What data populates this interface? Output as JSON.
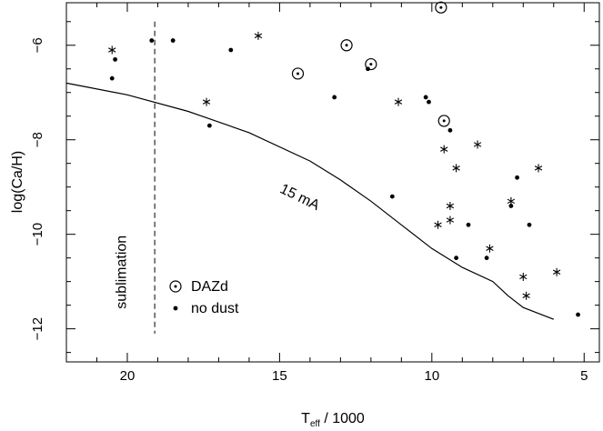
{
  "chart_data": {
    "type": "scatter",
    "xlabel": "T_eff / 1000",
    "ylabel": "log(Ca/H)",
    "xlim": [
      22,
      4.5
    ],
    "ylim": [
      -12.7,
      -5.1
    ],
    "x_reversed": true,
    "grid": false,
    "legend_placement": "lower-left",
    "x_ticks": [
      20,
      15,
      10,
      5
    ],
    "y_ticks": [
      -6,
      -8,
      -10,
      -12
    ],
    "series": [
      {
        "name": "DAZd",
        "marker": "circle-dot",
        "points": [
          [
            9.7,
            -5.2
          ],
          [
            12.8,
            -6.0
          ],
          [
            12.0,
            -6.4
          ],
          [
            14.4,
            -6.6
          ],
          [
            9.6,
            -7.6
          ]
        ]
      },
      {
        "name": "no dust",
        "marker": "dot",
        "points": [
          [
            20.5,
            -6.7
          ],
          [
            20.4,
            -6.3
          ],
          [
            19.2,
            -5.9
          ],
          [
            18.5,
            -5.9
          ],
          [
            16.6,
            -6.1
          ],
          [
            17.3,
            -7.7
          ],
          [
            13.2,
            -7.1
          ],
          [
            12.1,
            -6.5
          ],
          [
            10.2,
            -7.1
          ],
          [
            10.1,
            -7.2
          ],
          [
            9.4,
            -7.8
          ],
          [
            11.3,
            -9.2
          ],
          [
            9.2,
            -10.5
          ],
          [
            8.8,
            -9.8
          ],
          [
            8.2,
            -10.5
          ],
          [
            7.4,
            -9.4
          ],
          [
            7.2,
            -8.8
          ],
          [
            6.8,
            -9.8
          ],
          [
            5.2,
            -11.7
          ]
        ]
      },
      {
        "name": "",
        "marker": "asterisk",
        "points": [
          [
            20.5,
            -6.1
          ],
          [
            17.4,
            -7.2
          ],
          [
            15.7,
            -5.8
          ],
          [
            11.1,
            -7.2
          ],
          [
            9.6,
            -8.2
          ],
          [
            9.2,
            -8.6
          ],
          [
            8.5,
            -8.1
          ],
          [
            9.4,
            -9.4
          ],
          [
            9.4,
            -9.7
          ],
          [
            9.8,
            -9.8
          ],
          [
            8.1,
            -10.3
          ],
          [
            7.4,
            -9.3
          ],
          [
            7.0,
            -10.9
          ],
          [
            6.9,
            -11.3
          ],
          [
            6.5,
            -8.6
          ],
          [
            5.9,
            -10.8
          ]
        ]
      }
    ],
    "curve": {
      "label": "15 mA",
      "points": [
        [
          22,
          -6.8
        ],
        [
          20,
          -7.05
        ],
        [
          18,
          -7.4
        ],
        [
          16,
          -7.85
        ],
        [
          14,
          -8.45
        ],
        [
          13,
          -8.85
        ],
        [
          12,
          -9.3
        ],
        [
          11,
          -9.8
        ],
        [
          10,
          -10.3
        ],
        [
          9,
          -10.7
        ],
        [
          8,
          -11.0
        ],
        [
          7.5,
          -11.3
        ],
        [
          7,
          -11.55
        ],
        [
          6,
          -11.8
        ]
      ]
    },
    "sublimation_line": {
      "label": "sublimation",
      "x": 19.1,
      "y_range": [
        -12.1,
        -5.5
      ]
    }
  }
}
